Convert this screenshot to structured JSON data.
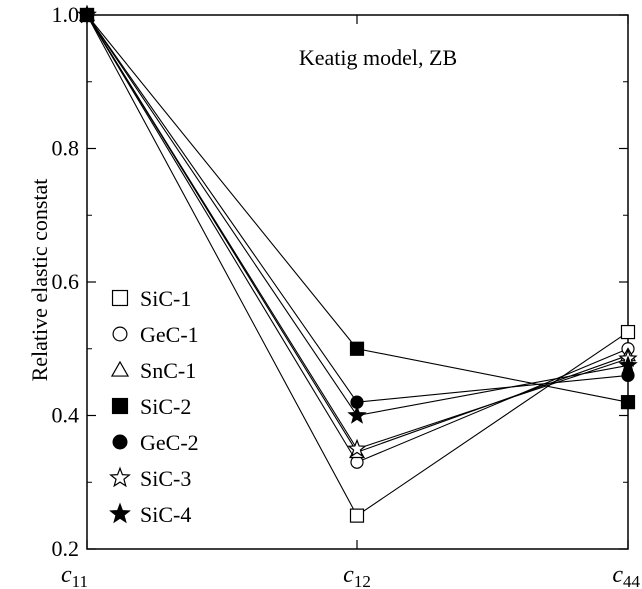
{
  "chart_data": {
    "type": "line",
    "annotation": "Keatig model, ZB",
    "ylabel": "Relative elastic constat",
    "xlabel": "",
    "categories": [
      {
        "base": "c",
        "sub": "11"
      },
      {
        "base": "c",
        "sub": "12"
      },
      {
        "base": "c",
        "sub": "44"
      }
    ],
    "ylim": [
      0.2,
      1.0
    ],
    "yticks": [
      "0.2",
      "0.4",
      "0.6",
      "0.8",
      "1.0"
    ],
    "ytick_values": [
      0.2,
      0.4,
      0.6,
      0.8,
      1.0
    ],
    "grid": false,
    "legend_position": "left",
    "series": [
      {
        "name": "SiC-1",
        "marker": "square-open",
        "values": [
          1.0,
          0.25,
          0.525
        ]
      },
      {
        "name": "GeC-1",
        "marker": "circle-open",
        "values": [
          1.0,
          0.33,
          0.5
        ]
      },
      {
        "name": "SnC-1",
        "marker": "triangle-open",
        "values": [
          1.0,
          0.345,
          0.49
        ]
      },
      {
        "name": "SiC-2",
        "marker": "square-filled",
        "values": [
          1.0,
          0.5,
          0.42
        ]
      },
      {
        "name": "GeC-2",
        "marker": "circle-filled",
        "values": [
          1.0,
          0.42,
          0.46
        ]
      },
      {
        "name": "SiC-3",
        "marker": "star-open",
        "values": [
          1.0,
          0.35,
          0.485
        ]
      },
      {
        "name": "SiC-4",
        "marker": "star-filled",
        "values": [
          1.0,
          0.4,
          0.475
        ]
      }
    ]
  }
}
